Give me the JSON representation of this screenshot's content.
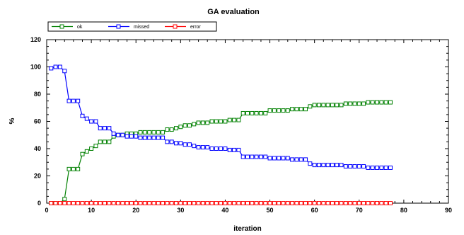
{
  "chart_data": {
    "type": "line",
    "title": "GA evaluation",
    "xlabel": "iteration",
    "ylabel": "%",
    "xlim": [
      0,
      90
    ],
    "ylim": [
      0,
      120
    ],
    "x_ticks": [
      0,
      10,
      20,
      30,
      40,
      50,
      60,
      70,
      80,
      90
    ],
    "y_ticks": [
      0,
      20,
      40,
      60,
      80,
      100,
      120
    ],
    "grid": false,
    "legend_position": "top-left",
    "series": [
      {
        "name": "ok",
        "color": "#008000",
        "marker": "square",
        "x": [
          1,
          2,
          3,
          4,
          5,
          6,
          7,
          8,
          9,
          10,
          11,
          12,
          13,
          14,
          15,
          16,
          17,
          18,
          19,
          20,
          21,
          22,
          23,
          24,
          25,
          26,
          27,
          28,
          29,
          30,
          31,
          32,
          33,
          34,
          35,
          36,
          37,
          38,
          39,
          40,
          41,
          42,
          43,
          44,
          45,
          46,
          47,
          48,
          49,
          50,
          51,
          52,
          53,
          54,
          55,
          56,
          57,
          58,
          59,
          60,
          61,
          62,
          63,
          64,
          65,
          66,
          67,
          68,
          69,
          70,
          71,
          72,
          73,
          74,
          75,
          76,
          77
        ],
        "values": [
          0,
          0,
          0,
          3,
          25,
          25,
          25,
          36,
          38,
          40,
          42,
          45,
          45,
          45,
          49,
          50,
          50,
          51,
          51,
          51,
          52,
          52,
          52,
          52,
          52,
          52,
          54,
          54,
          55,
          56,
          57,
          57,
          58,
          59,
          59,
          59,
          60,
          60,
          60,
          60,
          61,
          61,
          61,
          66,
          66,
          66,
          66,
          66,
          66,
          68,
          68,
          68,
          68,
          68,
          69,
          69,
          69,
          69,
          71,
          72,
          72,
          72,
          72,
          72,
          72,
          72,
          73,
          73,
          73,
          73,
          73,
          74,
          74,
          74,
          74,
          74,
          74
        ]
      },
      {
        "name": "missed",
        "color": "#0000ff",
        "marker": "square",
        "x": [
          1,
          2,
          3,
          4,
          5,
          6,
          7,
          8,
          9,
          10,
          11,
          12,
          13,
          14,
          15,
          16,
          17,
          18,
          19,
          20,
          21,
          22,
          23,
          24,
          25,
          26,
          27,
          28,
          29,
          30,
          31,
          32,
          33,
          34,
          35,
          36,
          37,
          38,
          39,
          40,
          41,
          42,
          43,
          44,
          45,
          46,
          47,
          48,
          49,
          50,
          51,
          52,
          53,
          54,
          55,
          56,
          57,
          58,
          59,
          60,
          61,
          62,
          63,
          64,
          65,
          66,
          67,
          68,
          69,
          70,
          71,
          72,
          73,
          74,
          75,
          76,
          77
        ],
        "values": [
          99,
          100,
          100,
          97,
          75,
          75,
          75,
          64,
          62,
          60,
          60,
          55,
          55,
          55,
          51,
          50,
          50,
          49,
          49,
          49,
          48,
          48,
          48,
          48,
          48,
          48,
          45,
          45,
          44,
          44,
          43,
          43,
          42,
          41,
          41,
          41,
          40,
          40,
          40,
          40,
          39,
          39,
          39,
          34,
          34,
          34,
          34,
          34,
          34,
          33,
          33,
          33,
          33,
          33,
          32,
          32,
          32,
          32,
          29,
          28,
          28,
          28,
          28,
          28,
          28,
          28,
          27,
          27,
          27,
          27,
          27,
          26,
          26,
          26,
          26,
          26,
          26
        ]
      },
      {
        "name": "error",
        "color": "#ff0000",
        "marker": "square",
        "x": [
          1,
          2,
          3,
          4,
          5,
          6,
          7,
          8,
          9,
          10,
          11,
          12,
          13,
          14,
          15,
          16,
          17,
          18,
          19,
          20,
          21,
          22,
          23,
          24,
          25,
          26,
          27,
          28,
          29,
          30,
          31,
          32,
          33,
          34,
          35,
          36,
          37,
          38,
          39,
          40,
          41,
          42,
          43,
          44,
          45,
          46,
          47,
          48,
          49,
          50,
          51,
          52,
          53,
          54,
          55,
          56,
          57,
          58,
          59,
          60,
          61,
          62,
          63,
          64,
          65,
          66,
          67,
          68,
          69,
          70,
          71,
          72,
          73,
          74,
          75,
          76,
          77
        ],
        "values": [
          0,
          0,
          0,
          0,
          0,
          0,
          0,
          0,
          0,
          0,
          0,
          0,
          0,
          0,
          0,
          0,
          0,
          0,
          0,
          0,
          0,
          0,
          0,
          0,
          0,
          0,
          0,
          0,
          0,
          0,
          0,
          0,
          0,
          0,
          0,
          0,
          0,
          0,
          0,
          0,
          0,
          0,
          0,
          0,
          0,
          0,
          0,
          0,
          0,
          0,
          0,
          0,
          0,
          0,
          0,
          0,
          0,
          0,
          0,
          0,
          0,
          0,
          0,
          0,
          0,
          0,
          0,
          0,
          0,
          0,
          0,
          0,
          0,
          0,
          0,
          0,
          0
        ]
      }
    ]
  }
}
